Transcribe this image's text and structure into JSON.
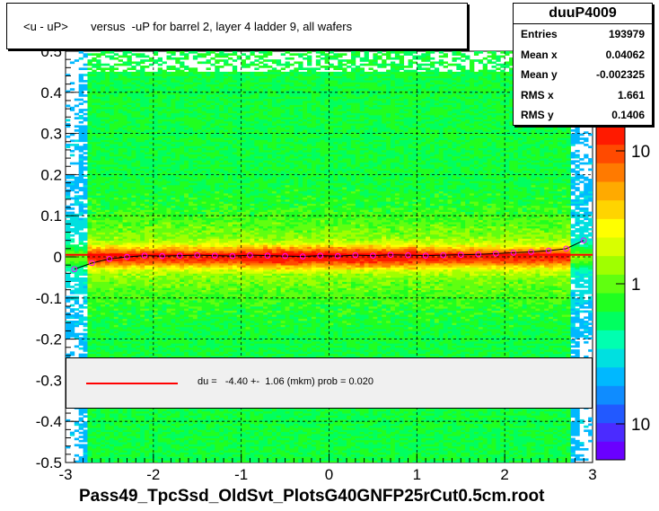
{
  "chart_data": {
    "type": "heatmap",
    "title": "<u - uP>       versus  -uP for barrel 2, layer 4 ladder 9, all wafers",
    "xlabel": "Pass49_TpcSsd_OldSvt_PlotsG40GNFP25rCut0.5cm.root",
    "xlim": [
      -3,
      3
    ],
    "ylim": [
      -0.5,
      0.5
    ],
    "x_ticks": [
      "-3",
      "-2",
      "-1",
      "0",
      "1",
      "2",
      "3"
    ],
    "y_ticks": [
      "-0.5",
      "-0.4",
      "-0.3",
      "-0.2",
      "-0.1",
      "0",
      "0.1",
      "0.2",
      "0.3",
      "0.4",
      "0.5"
    ],
    "colorbar_ticks": [
      "10",
      "1",
      "10"
    ],
    "log_z": true,
    "grid": true,
    "profile_points": {
      "x": [
        -2.9,
        -2.7,
        -2.5,
        -2.3,
        -2.1,
        -1.9,
        -1.7,
        -1.5,
        -1.3,
        -1.1,
        -0.9,
        -0.7,
        -0.5,
        -0.3,
        -0.1,
        0.1,
        0.3,
        0.5,
        0.7,
        0.9,
        1.1,
        1.3,
        1.5,
        1.7,
        1.9,
        2.1,
        2.3,
        2.5,
        2.7,
        2.9
      ],
      "y": [
        -0.03,
        -0.015,
        -0.005,
        0.0,
        0.003,
        0.002,
        0.003,
        0.004,
        0.003,
        0.002,
        0.004,
        0.003,
        0.002,
        0.001,
        0.003,
        0.002,
        0.004,
        0.003,
        0.005,
        0.004,
        0.003,
        0.004,
        0.005,
        0.006,
        0.008,
        0.01,
        0.012,
        0.015,
        0.02,
        0.04
      ]
    },
    "fit_line": {
      "color": "#ff0000",
      "y_value": 0.005
    }
  },
  "stats": {
    "name": "duuP4009",
    "rows": [
      {
        "label": "Entries",
        "value": "193979"
      },
      {
        "label": "Mean x",
        "value": "0.04062"
      },
      {
        "label": "Mean y",
        "value": "-0.002325"
      },
      {
        "label": "RMS x",
        "value": "1.661"
      },
      {
        "label": "RMS y",
        "value": "0.1406"
      }
    ]
  },
  "fit_legend": "du =   -4.40 +-  1.06 (mkm) prob = 0.020"
}
